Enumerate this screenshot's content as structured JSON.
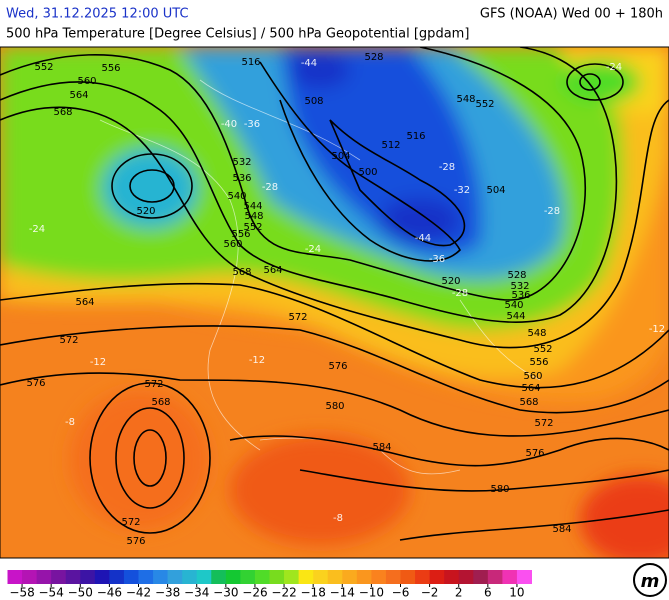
{
  "header": {
    "datetime": "Wed, 31.12.2025 12:00 UTC",
    "model": "GFS (NOAA) Wed 00 + 180h",
    "title": "500 hPa Temperature [Degree Celsius] / 500 hPa Geopotential [gpdam]"
  },
  "geopotential_labels": [
    "552",
    "556",
    "560",
    "564",
    "568",
    "516",
    "528",
    "508",
    "548",
    "552",
    "516",
    "512",
    "504",
    "532",
    "500",
    "536",
    "504",
    "540",
    "520",
    "544",
    "548",
    "552",
    "556",
    "560",
    "568",
    "564",
    "528",
    "520",
    "532",
    "536",
    "564",
    "540",
    "544",
    "572",
    "548",
    "572",
    "552",
    "556",
    "576",
    "560",
    "576",
    "572",
    "564",
    "568",
    "568",
    "580",
    "572",
    "584",
    "576",
    "580",
    "572",
    "584",
    "576"
  ],
  "temperature_labels": [
    "-44",
    "-40",
    "-36",
    "-28",
    "-24",
    "-44",
    "-36",
    "-32",
    "-28",
    "-28",
    "-28",
    "-24",
    "-24",
    "-12",
    "-12",
    "-12",
    "-8",
    "-8"
  ],
  "colorbar": {
    "range": [
      -60,
      12
    ],
    "colors": [
      "#c814c8",
      "#b414b4",
      "#9614aa",
      "#7814a0",
      "#5a14a0",
      "#3c14a5",
      "#1e14b4",
      "#1432c8",
      "#1450dc",
      "#1e6ee6",
      "#2888e6",
      "#32a0dc",
      "#28b4d2",
      "#1ec8c8",
      "#14be5a",
      "#14c832",
      "#32d232",
      "#50dc28",
      "#78dc1e",
      "#a0e61e",
      "#fae614",
      "#fad21e",
      "#fabe1e",
      "#faaa1e",
      "#fa961e",
      "#fa821e",
      "#f56e1e",
      "#f05a14",
      "#eb3c14",
      "#dc1e14",
      "#c8141e",
      "#b41432",
      "#a01e50",
      "#c8287a",
      "#f032b4",
      "#fa50f0"
    ],
    "ticks": [
      {
        "value": -58,
        "label": "−58"
      },
      {
        "value": -54,
        "label": "−54"
      },
      {
        "value": -50,
        "label": "−50"
      },
      {
        "value": -46,
        "label": "−46"
      },
      {
        "value": -42,
        "label": "−42"
      },
      {
        "value": -38,
        "label": "−38"
      },
      {
        "value": -34,
        "label": "−34"
      },
      {
        "value": -30,
        "label": "−30"
      },
      {
        "value": -26,
        "label": "−26"
      },
      {
        "value": -22,
        "label": "−22"
      },
      {
        "value": -18,
        "label": "−18"
      },
      {
        "value": -14,
        "label": "−14"
      },
      {
        "value": -10,
        "label": "−10"
      },
      {
        "value": -6,
        "label": "−6"
      },
      {
        "value": -2,
        "label": "−2"
      },
      2,
      6,
      10
    ]
  },
  "logo": "m"
}
